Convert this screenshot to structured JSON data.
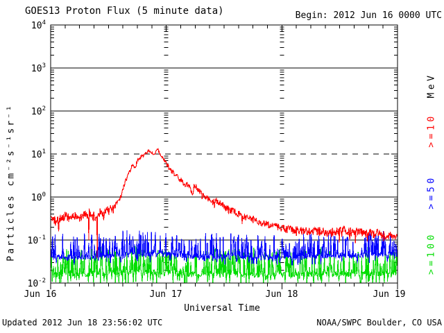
{
  "header": {
    "title": "GOES13 Proton Flux (5 minute data)",
    "begin_label": "Begin: 2012 Jun 16 0000 UTC"
  },
  "axes": {
    "x_title": "Universal Time",
    "x_ticks": [
      "Jun 16",
      "Jun 17",
      "Jun 18",
      "Jun 19"
    ],
    "y_title": "Particles cm⁻²s⁻¹sr⁻¹",
    "y_ticks": [
      {
        "base": "10",
        "exp": "4"
      },
      {
        "base": "10",
        "exp": "3"
      },
      {
        "base": "10",
        "exp": "2"
      },
      {
        "base": "10",
        "exp": "1"
      },
      {
        "base": "10",
        "exp": "0"
      },
      {
        "base": "10",
        "exp": "-1"
      },
      {
        "base": "10",
        "exp": "-2"
      }
    ],
    "right_unit": "MeV"
  },
  "footer": {
    "updated": "Updated 2012 Jun 18 23:56:02 UTC",
    "source": "NOAA/SWPC Boulder, CO USA"
  },
  "colors": {
    "background": "#ffffff",
    "axis": "#000000",
    "ge10": "#ff0000",
    "ge50": "#0000ff",
    "ge100": "#00dd00"
  },
  "chart_data": {
    "type": "line",
    "title": "GOES13 Proton Flux (5 minute data)",
    "begin_utc": "2012 Jun 16 0000 UTC",
    "sample_minutes": 5,
    "x": {
      "span_hours": 72,
      "minor_tick_hours": 3,
      "major_tick_hours": 24,
      "tick_labels": [
        "Jun 16",
        "Jun 17",
        "Jun 18",
        "Jun 19"
      ],
      "title": "Universal Time"
    },
    "y": {
      "log_min": -2,
      "log_max": 4,
      "title": "Particles cm-2 s-1 sr-1",
      "unit": "MeV",
      "solid_gridlines_log": [
        3,
        2,
        0,
        -1
      ],
      "dashed_gridlines_log": [
        1
      ]
    },
    "event_peak": {
      "time_hours": 22.3,
      "flux_approx": 13,
      "series": ">=10 MeV"
    },
    "series": [
      {
        "name": ">=10",
        "units": "MeV",
        "color": "#ff0000",
        "kind": "envelope",
        "seed": 42,
        "envelope_log10": [
          [
            0,
            -0.5
          ],
          [
            1,
            -0.55
          ],
          [
            2,
            -0.5
          ],
          [
            3,
            -0.42
          ],
          [
            4,
            -0.5
          ],
          [
            5,
            -0.45
          ],
          [
            6,
            -0.52
          ],
          [
            7,
            -0.42
          ],
          [
            8,
            -0.38
          ],
          [
            9,
            -0.45
          ],
          [
            9.7,
            -0.5
          ],
          [
            10.2,
            -0.36
          ],
          [
            11,
            -0.4
          ],
          [
            11.5,
            -0.3
          ],
          [
            12,
            -0.33
          ],
          [
            12.5,
            -0.25
          ],
          [
            13,
            -0.28
          ],
          [
            13.5,
            -0.18
          ],
          [
            14,
            -0.12
          ],
          [
            14.6,
            0.02
          ],
          [
            15.2,
            0.25
          ],
          [
            15.8,
            0.45
          ],
          [
            16.4,
            0.6
          ],
          [
            16.9,
            0.72
          ],
          [
            17.2,
            0.78
          ],
          [
            17.5,
            0.66
          ],
          [
            18,
            0.84
          ],
          [
            18.5,
            0.9
          ],
          [
            19,
            0.93
          ],
          [
            19.5,
            1
          ],
          [
            20,
            1.04
          ],
          [
            20.5,
            1.08
          ],
          [
            21,
            1.03
          ],
          [
            21.5,
            0.99
          ],
          [
            21.9,
            1.06
          ],
          [
            22.3,
            1.11
          ],
          [
            22.6,
            1.02
          ],
          [
            23,
            0.95
          ],
          [
            23.5,
            0.88
          ],
          [
            24,
            0.78
          ],
          [
            24.5,
            0.7
          ],
          [
            25,
            0.62
          ],
          [
            25.5,
            0.55
          ],
          [
            26,
            0.5
          ],
          [
            26.5,
            0.44
          ],
          [
            27,
            0.4
          ],
          [
            27.5,
            0.34
          ],
          [
            28,
            0.28
          ],
          [
            28.6,
            0.3
          ],
          [
            29.2,
            0.12
          ],
          [
            29.5,
            0.02
          ],
          [
            29.8,
            0.28
          ],
          [
            30.3,
            0.2
          ],
          [
            31,
            0.12
          ],
          [
            31.7,
            0.02
          ],
          [
            32.3,
            -0.05
          ],
          [
            33,
            -0.02
          ],
          [
            33.6,
            -0.12
          ],
          [
            34.3,
            -0.06
          ],
          [
            35,
            -0.15
          ],
          [
            36,
            -0.22
          ],
          [
            37,
            -0.28
          ],
          [
            38,
            -0.34
          ],
          [
            39,
            -0.38
          ],
          [
            40,
            -0.44
          ],
          [
            41,
            -0.48
          ],
          [
            42,
            -0.52
          ],
          [
            43.5,
            -0.58
          ],
          [
            45,
            -0.64
          ],
          [
            46.5,
            -0.68
          ],
          [
            48,
            -0.72
          ],
          [
            50,
            -0.76
          ],
          [
            52,
            -0.78
          ],
          [
            54,
            -0.8
          ],
          [
            56,
            -0.8
          ],
          [
            58,
            -0.82
          ],
          [
            60,
            -0.8
          ],
          [
            61,
            -0.76
          ],
          [
            62,
            -0.8
          ],
          [
            63,
            -0.82
          ],
          [
            64,
            -0.8
          ],
          [
            65,
            -0.84
          ],
          [
            66,
            -0.82
          ],
          [
            67,
            -0.86
          ],
          [
            68,
            -0.84
          ],
          [
            69,
            -0.88
          ],
          [
            70,
            -0.92
          ],
          [
            70.7,
            -0.86
          ],
          [
            71.3,
            -0.9
          ],
          [
            72,
            -0.84
          ]
        ],
        "noise_profile_dex": [
          [
            0,
            14,
            0.1
          ],
          [
            14,
            19,
            0.05
          ],
          [
            19,
            23.5,
            0.03
          ],
          [
            23.5,
            31,
            0.06
          ],
          [
            31,
            40,
            0.08
          ],
          [
            40,
            54,
            0.09
          ],
          [
            54,
            72,
            0.1
          ]
        ],
        "down_spikes": [
          [
            7.9,
            -1.0
          ],
          [
            9.65,
            -1.42
          ]
        ]
      },
      {
        "name": ">=50",
        "units": "MeV",
        "color": "#0000ff",
        "kind": "noisefloor",
        "seed": 7,
        "base_log10": [
          [
            0,
            -1.4
          ],
          [
            12,
            -1.38
          ],
          [
            16,
            -1.31
          ],
          [
            24,
            -1.34
          ],
          [
            30,
            -1.38
          ],
          [
            48,
            -1.4
          ],
          [
            58,
            -1.37
          ],
          [
            72,
            -1.33
          ]
        ],
        "p_up": 0.3,
        "up_max": 0.55,
        "p_down": 0.1,
        "down_max": 0.12,
        "jitter": 0.06
      },
      {
        "name": ">=100",
        "units": "MeV",
        "color": "#00dd00",
        "kind": "noisefloor",
        "seed": 99,
        "base_log10": [
          [
            0,
            -1.8
          ],
          [
            12,
            -1.77
          ],
          [
            18,
            -1.73
          ],
          [
            24,
            -1.77
          ],
          [
            48,
            -1.8
          ],
          [
            72,
            -1.77
          ]
        ],
        "p_up": 0.35,
        "up_max": 0.62,
        "p_down": 0.15,
        "down_max": 0.18,
        "jitter": 0.07
      }
    ]
  }
}
